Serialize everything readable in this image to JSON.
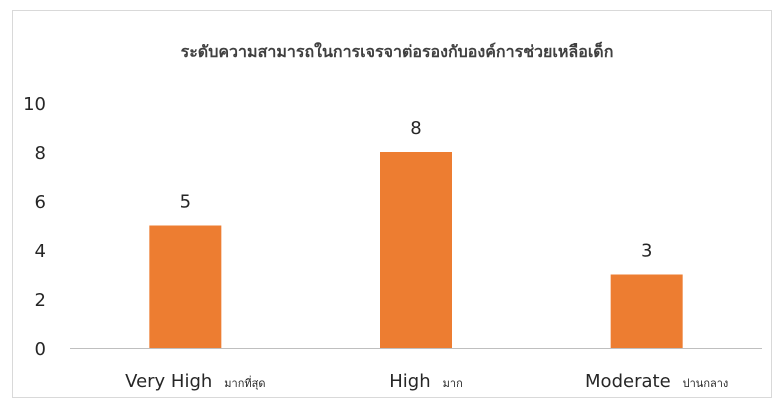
{
  "chart_data": {
    "type": "bar",
    "title": "ระดับความสามารถในการเจรจาต่อรองกับองค์การช่วยเหลือเด็ก",
    "categories": [
      "Very High",
      "High",
      "Moderate"
    ],
    "category_sublabels": [
      "มากที่สุด",
      "มาก",
      "ปานกลาง"
    ],
    "values": [
      5,
      8,
      3
    ],
    "data_labels": [
      "5",
      "8",
      "3"
    ],
    "ylim": [
      0,
      10
    ],
    "yticks": [
      "0",
      "2",
      "4",
      "6",
      "8",
      "10"
    ],
    "xlabel": "",
    "ylabel": "",
    "grid": false,
    "legend": "none",
    "bar_color": "#ed7d31",
    "axis_color": "#bfbfbf"
  }
}
